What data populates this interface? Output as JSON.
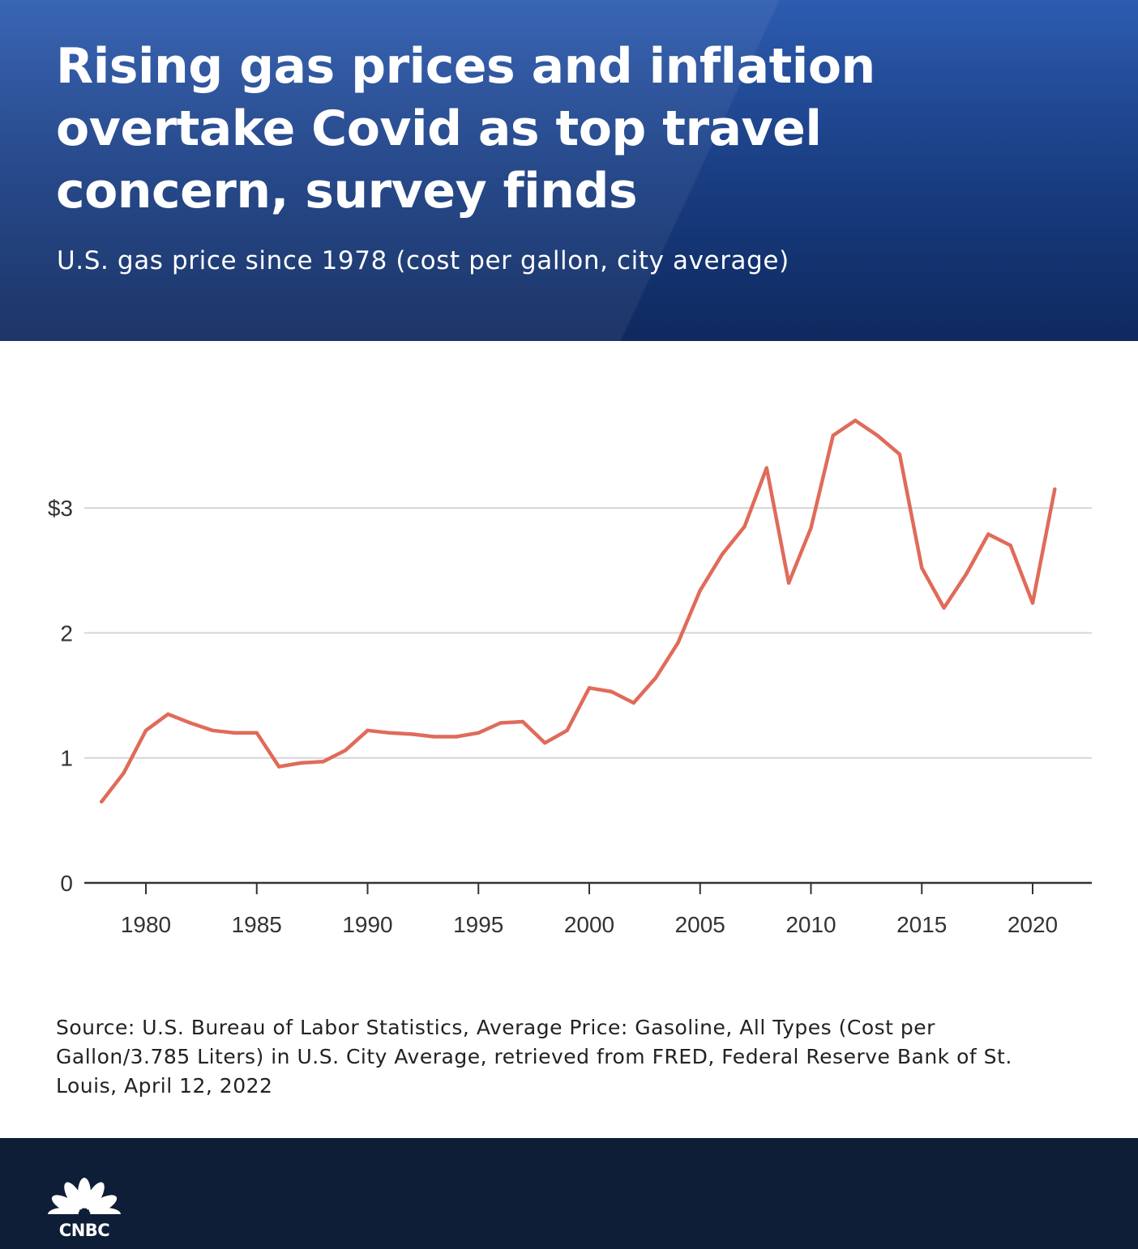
{
  "header": {
    "title": "Rising gas prices and inflation overtake Covid as top travel concern, survey finds",
    "subtitle": "U.S. gas price since 1978 (cost per gallon, city average)"
  },
  "chart_data": {
    "type": "line",
    "title": "Rising gas prices and inflation overtake Covid as top travel concern, survey finds",
    "subtitle": "U.S. gas price since 1978 (cost per gallon, city average)",
    "xlabel": "",
    "ylabel": "",
    "x": [
      1978,
      1979,
      1980,
      1981,
      1982,
      1983,
      1984,
      1985,
      1986,
      1987,
      1988,
      1989,
      1990,
      1991,
      1992,
      1993,
      1994,
      1995,
      1996,
      1997,
      1998,
      1999,
      2000,
      2001,
      2002,
      2003,
      2004,
      2005,
      2006,
      2007,
      2008,
      2009,
      2010,
      2011,
      2012,
      2013,
      2014,
      2015,
      2016,
      2017,
      2018,
      2019,
      2020,
      2021
    ],
    "series": [
      {
        "name": "Average price: gasoline, all types",
        "color": "#e06b5a",
        "values": [
          0.65,
          0.88,
          1.22,
          1.35,
          1.28,
          1.22,
          1.2,
          1.2,
          0.93,
          0.96,
          0.97,
          1.06,
          1.22,
          1.2,
          1.19,
          1.17,
          1.17,
          1.2,
          1.28,
          1.29,
          1.12,
          1.22,
          1.56,
          1.53,
          1.44,
          1.64,
          1.92,
          2.34,
          2.63,
          2.85,
          3.32,
          2.4,
          2.84,
          3.58,
          3.7,
          3.58,
          3.43,
          2.52,
          2.2,
          2.47,
          2.79,
          2.7,
          2.24,
          3.15
        ]
      }
    ],
    "xticks": [
      1980,
      1985,
      1990,
      1995,
      2000,
      2005,
      2010,
      2015,
      2020
    ],
    "xtick_labels": [
      "1980",
      "1985",
      "1990",
      "1995",
      "2000",
      "2005",
      "2010",
      "2015",
      "2020"
    ],
    "yticks": [
      0,
      1,
      2,
      3
    ],
    "ytick_labels": [
      "0",
      "1",
      "2",
      "$3"
    ],
    "xlim": [
      1976,
      2023
    ],
    "ylim": [
      0,
      4
    ],
    "grid": "horizontal",
    "legend": "none"
  },
  "source": {
    "text": "Source: U.S. Bureau of Labor Statistics, Average Price: Gasoline, All Types (Cost per Gallon/3.785 Liters) in U.S. City Average, retrieved from FRED, Federal Reserve Bank of St. Louis, April 12, 2022"
  },
  "footer": {
    "logo_text": "CNBC",
    "logo_icon": "peacock-icon"
  }
}
